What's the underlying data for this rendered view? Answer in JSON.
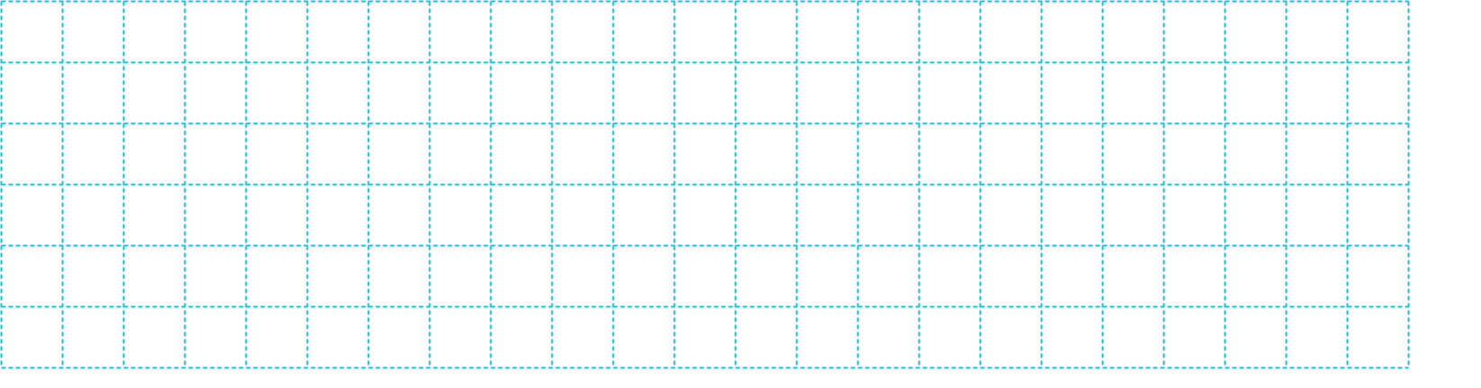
{
  "grid": {
    "columns": 23,
    "rows": 6,
    "line_color": "#1BBFE3",
    "line_style": "dashed",
    "background_color": "#FFFFFF"
  }
}
